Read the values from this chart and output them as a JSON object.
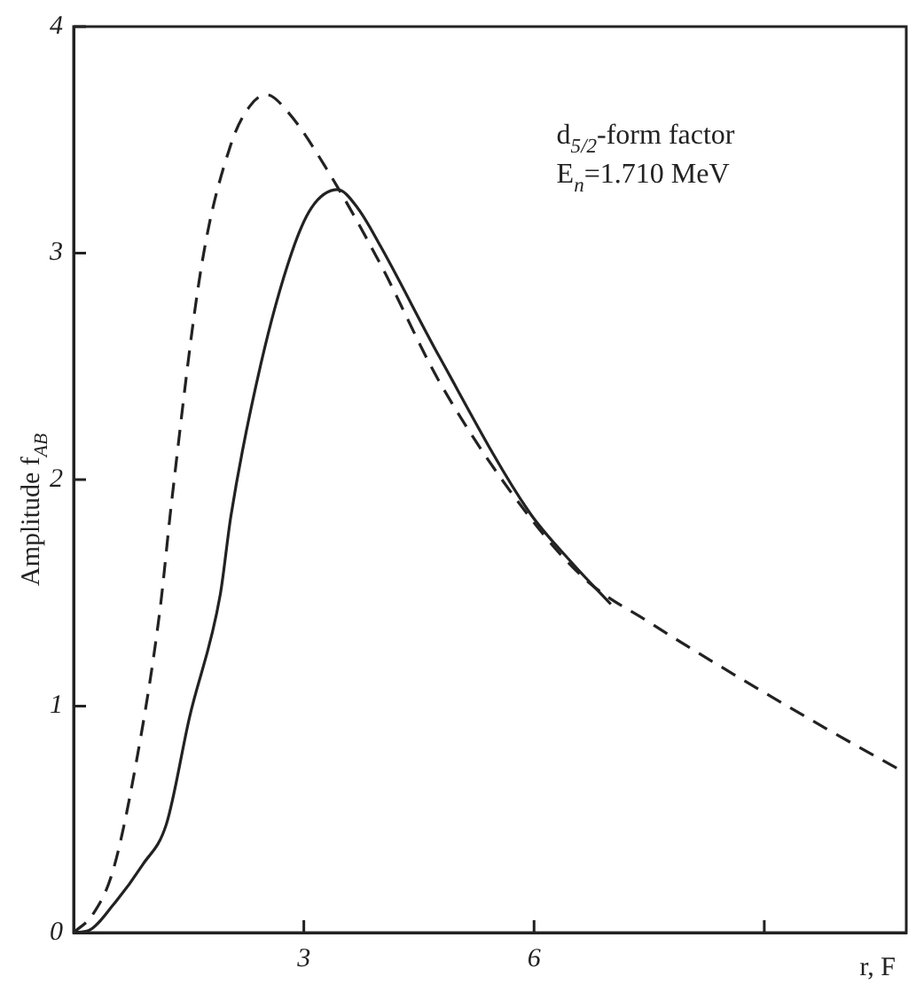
{
  "chart_data": {
    "type": "line",
    "xlabel": "r, F",
    "ylabel": "Amplitude f$_{AB}$",
    "annotations": [
      "d$_{5/2}$-form factor",
      "E$_{n}$=1.710 MeV"
    ],
    "xlim": [
      0,
      10.85
    ],
    "ylim": [
      0,
      4
    ],
    "xticks": [
      3,
      6,
      {
        "value": 9,
        "label": null
      }
    ],
    "yticks": [
      0,
      1,
      2,
      3,
      4
    ],
    "grid": false,
    "legend": false,
    "marker": "none",
    "series": [
      {
        "color": "#222222",
        "line_style": "dashed",
        "x": [
          0,
          0.25,
          0.51,
          0.81,
          1.12,
          1.28,
          1.67,
          2.05,
          2.3,
          2.51,
          2.8,
          3.3,
          4.0,
          4.77,
          5.93,
          6.7,
          7.5,
          8.26,
          9.0,
          9.81,
          10.81
        ],
        "values": [
          0,
          0.08,
          0.27,
          0.74,
          1.41,
          1.91,
          2.95,
          3.48,
          3.65,
          3.7,
          3.62,
          3.37,
          2.95,
          2.43,
          1.84,
          1.55,
          1.37,
          1.21,
          1.06,
          0.9,
          0.71
        ]
      },
      {
        "color": "#222222",
        "line_style": "solid",
        "x": [
          0,
          0.2,
          0.51,
          0.9,
          1.21,
          1.51,
          1.91,
          2.05,
          2.44,
          2.84,
          3.1,
          3.44,
          3.7,
          4.0,
          4.77,
          5.93,
          6.5,
          7.0
        ],
        "values": [
          0,
          0.01,
          0.12,
          0.3,
          0.48,
          0.95,
          1.49,
          1.84,
          2.51,
          3.0,
          3.2,
          3.28,
          3.2,
          3.03,
          2.54,
          1.86,
          1.63,
          1.45
        ]
      }
    ]
  }
}
